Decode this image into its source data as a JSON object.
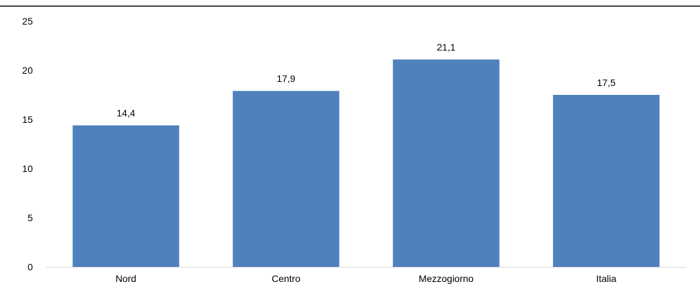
{
  "chart_data": {
    "type": "bar",
    "categories": [
      "Nord",
      "Centro",
      "Mezzogiorno",
      "Italia"
    ],
    "values": [
      14.4,
      17.9,
      21.1,
      17.5
    ],
    "value_labels": [
      "14,4",
      "17,9",
      "21,1",
      "17,5"
    ],
    "ylim": [
      0,
      25
    ],
    "yticks": [
      0,
      5,
      10,
      15,
      20,
      25
    ],
    "ytick_labels": [
      "0",
      "5",
      "10",
      "15",
      "20",
      "25"
    ],
    "title": "",
    "xlabel": "",
    "ylabel": "",
    "grid": false,
    "legend": "none",
    "bar_color": "#4f81bd",
    "axis_color": "#d9d9d9",
    "top_rule_color": "#000000"
  }
}
